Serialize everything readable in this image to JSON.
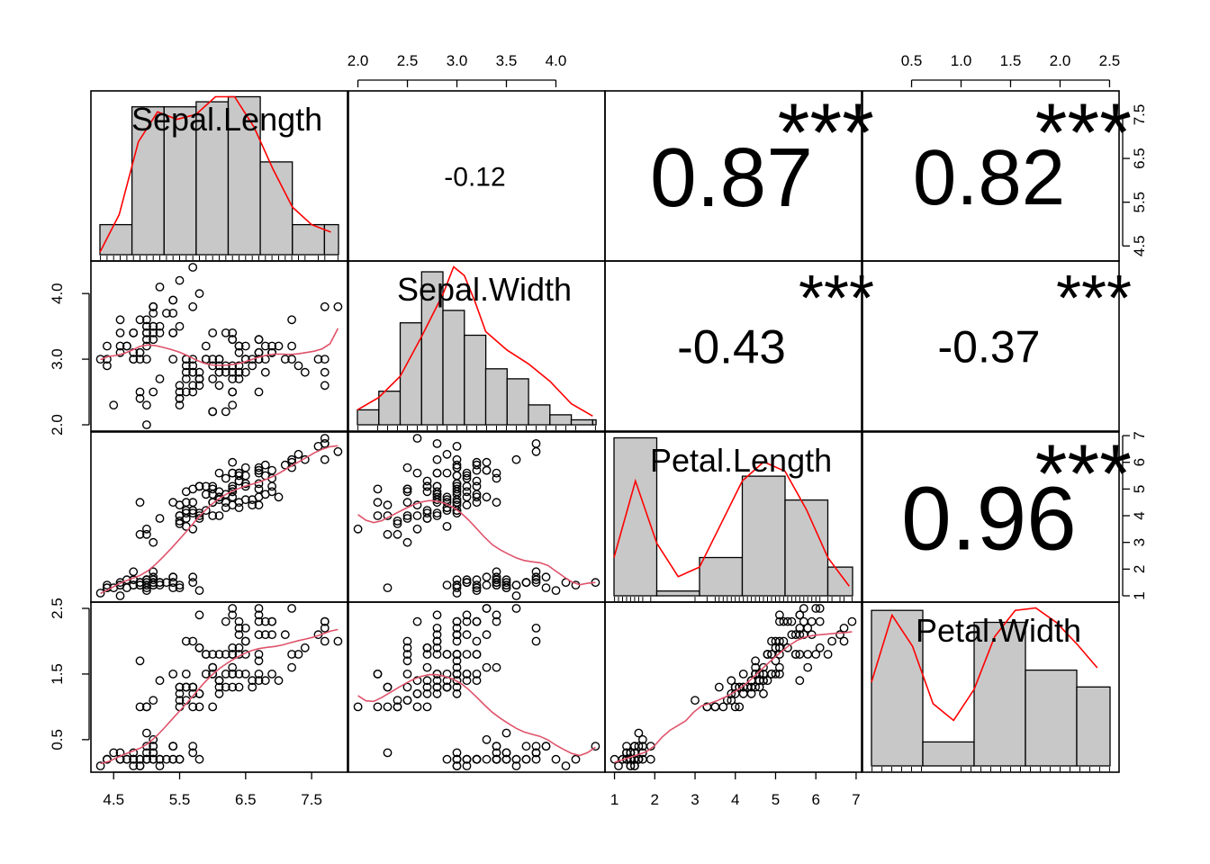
{
  "colors": {
    "smooth_line": "#ff0000",
    "scatter_line": "#df536b",
    "stars": "#df536b",
    "hist_fill": "#c8c8c8"
  },
  "chart_data": {
    "type": "scatter-matrix",
    "variables": [
      "Sepal.Length",
      "Sepal.Width",
      "Petal.Length",
      "Petal.Width"
    ],
    "ranges": [
      [
        4.3,
        7.9
      ],
      [
        2.0,
        4.4
      ],
      [
        1.0,
        6.9
      ],
      [
        0.1,
        2.5
      ]
    ],
    "axis_ticks": [
      [
        "4.5",
        "5.5",
        "6.5",
        "7.5"
      ],
      [
        "2.0",
        "2.5",
        "3.0",
        "3.5",
        "4.0"
      ],
      [
        "1",
        "2",
        "3",
        "4",
        "5",
        "6",
        "7"
      ],
      [
        "0.5",
        "1.0",
        "1.5",
        "2.0",
        "2.5"
      ]
    ],
    "left_axis_ticks": {
      "1": [
        "2.0",
        "3.0",
        "4.0"
      ],
      "3": [
        "0.5",
        "1.5",
        "2.5"
      ]
    },
    "right_axis_ticks": {
      "0": [
        "4.5",
        "5.5",
        "6.5",
        "7.5"
      ],
      "2": [
        "1",
        "2",
        "3",
        "4",
        "5",
        "6",
        "7"
      ]
    },
    "correlations": [
      {
        "pair": [
          "Sepal.Length",
          "Sepal.Width"
        ],
        "value": "-0.12",
        "stars": ""
      },
      {
        "pair": [
          "Sepal.Length",
          "Petal.Length"
        ],
        "value": "0.87",
        "stars": "***"
      },
      {
        "pair": [
          "Sepal.Length",
          "Petal.Width"
        ],
        "value": "0.82",
        "stars": "***"
      },
      {
        "pair": [
          "Sepal.Width",
          "Petal.Length"
        ],
        "value": "-0.43",
        "stars": "***"
      },
      {
        "pair": [
          "Sepal.Width",
          "Petal.Width"
        ],
        "value": "-0.37",
        "stars": "***"
      },
      {
        "pair": [
          "Petal.Length",
          "Petal.Width"
        ],
        "value": "0.96",
        "stars": "***"
      }
    ],
    "histograms": [
      {
        "breaks": [
          4.0,
          4.5,
          5.0,
          5.5,
          6.0,
          6.5,
          7.0,
          7.5,
          8.0
        ],
        "density": [
          0.12,
          0.59,
          0.59,
          0.61,
          0.63,
          0.37,
          0.12,
          0.12
        ]
      },
      {
        "breaks": [
          2.0,
          2.2,
          2.4,
          2.6,
          2.8,
          3.0,
          3.2,
          3.4,
          3.6,
          3.8,
          4.0,
          4.2,
          4.4
        ],
        "density": [
          0.12,
          0.27,
          0.82,
          1.23,
          0.92,
          0.72,
          0.45,
          0.37,
          0.16,
          0.08,
          0.04,
          0.04
        ]
      },
      {
        "breaks": [
          1,
          2,
          3,
          4,
          5,
          6,
          7
        ],
        "density": [
          0.33,
          0.01,
          0.08,
          0.25,
          0.2,
          0.06
        ]
      },
      {
        "breaks": [
          0.0,
          0.5,
          1.0,
          1.5,
          2.0,
          2.5
        ],
        "density": [
          0.65,
          0.1,
          0.6,
          0.4,
          0.33
        ]
      }
    ],
    "density_curves": [
      {
        "x": [
          4.0,
          4.3,
          4.6,
          4.9,
          5.2,
          5.5,
          5.8,
          6.1,
          6.4,
          6.7,
          7.0,
          7.3,
          7.6,
          8.0
        ],
        "y": [
          0.01,
          0.16,
          0.45,
          0.57,
          0.54,
          0.56,
          0.63,
          0.63,
          0.51,
          0.34,
          0.19,
          0.12,
          0.09,
          0.0
        ]
      },
      {
        "x": [
          2.0,
          2.2,
          2.4,
          2.6,
          2.8,
          2.9,
          3.0,
          3.1,
          3.2,
          3.4,
          3.6,
          3.8,
          4.0,
          4.2,
          4.4
        ],
        "y": [
          0.12,
          0.22,
          0.39,
          0.71,
          1.05,
          1.27,
          1.2,
          0.99,
          0.75,
          0.6,
          0.49,
          0.35,
          0.17,
          0.07,
          0.04
        ]
      },
      {
        "x": [
          1.0,
          1.5,
          2.0,
          2.5,
          3.0,
          3.5,
          4.0,
          4.5,
          5.0,
          5.5,
          6.0,
          6.5,
          7.0
        ],
        "y": [
          0.08,
          0.24,
          0.11,
          0.04,
          0.06,
          0.15,
          0.24,
          0.28,
          0.26,
          0.18,
          0.08,
          0.02,
          0.0
        ]
      },
      {
        "x": [
          0.0,
          0.2,
          0.4,
          0.6,
          0.8,
          1.0,
          1.2,
          1.4,
          1.6,
          1.8,
          2.0,
          2.2,
          2.5
        ],
        "y": [
          0.35,
          0.63,
          0.5,
          0.26,
          0.19,
          0.32,
          0.54,
          0.65,
          0.66,
          0.6,
          0.51,
          0.41,
          0.18
        ]
      }
    ],
    "data": [
      [
        5.1,
        3.5,
        1.4,
        0.2
      ],
      [
        4.9,
        3.0,
        1.4,
        0.2
      ],
      [
        4.7,
        3.2,
        1.3,
        0.2
      ],
      [
        4.6,
        3.1,
        1.5,
        0.2
      ],
      [
        5.0,
        3.6,
        1.4,
        0.2
      ],
      [
        5.4,
        3.9,
        1.7,
        0.4
      ],
      [
        4.6,
        3.4,
        1.4,
        0.3
      ],
      [
        5.0,
        3.4,
        1.5,
        0.2
      ],
      [
        4.4,
        2.9,
        1.4,
        0.2
      ],
      [
        4.9,
        3.1,
        1.5,
        0.1
      ],
      [
        5.4,
        3.7,
        1.5,
        0.2
      ],
      [
        4.8,
        3.4,
        1.6,
        0.2
      ],
      [
        4.8,
        3.0,
        1.4,
        0.1
      ],
      [
        4.3,
        3.0,
        1.1,
        0.1
      ],
      [
        5.8,
        4.0,
        1.2,
        0.2
      ],
      [
        5.7,
        4.4,
        1.5,
        0.4
      ],
      [
        5.4,
        3.9,
        1.3,
        0.4
      ],
      [
        5.1,
        3.5,
        1.4,
        0.3
      ],
      [
        5.7,
        3.8,
        1.7,
        0.3
      ],
      [
        5.1,
        3.8,
        1.5,
        0.3
      ],
      [
        5.4,
        3.4,
        1.7,
        0.2
      ],
      [
        5.1,
        3.7,
        1.5,
        0.4
      ],
      [
        4.6,
        3.6,
        1.0,
        0.2
      ],
      [
        5.1,
        3.3,
        1.7,
        0.5
      ],
      [
        4.8,
        3.4,
        1.9,
        0.2
      ],
      [
        5.0,
        3.0,
        1.6,
        0.2
      ],
      [
        5.0,
        3.4,
        1.6,
        0.4
      ],
      [
        5.2,
        3.5,
        1.5,
        0.2
      ],
      [
        5.2,
        3.4,
        1.4,
        0.2
      ],
      [
        4.7,
        3.2,
        1.6,
        0.2
      ],
      [
        4.8,
        3.1,
        1.6,
        0.2
      ],
      [
        5.4,
        3.4,
        1.5,
        0.4
      ],
      [
        5.2,
        4.1,
        1.5,
        0.1
      ],
      [
        5.5,
        4.2,
        1.4,
        0.2
      ],
      [
        4.9,
        3.1,
        1.5,
        0.2
      ],
      [
        5.0,
        3.2,
        1.2,
        0.2
      ],
      [
        5.5,
        3.5,
        1.3,
        0.2
      ],
      [
        4.9,
        3.6,
        1.4,
        0.1
      ],
      [
        4.4,
        3.0,
        1.3,
        0.2
      ],
      [
        5.1,
        3.4,
        1.5,
        0.2
      ],
      [
        5.0,
        3.5,
        1.3,
        0.3
      ],
      [
        4.5,
        2.3,
        1.3,
        0.3
      ],
      [
        4.4,
        3.2,
        1.3,
        0.2
      ],
      [
        5.0,
        3.5,
        1.6,
        0.6
      ],
      [
        5.1,
        3.8,
        1.9,
        0.4
      ],
      [
        4.8,
        3.0,
        1.4,
        0.3
      ],
      [
        5.1,
        3.8,
        1.6,
        0.2
      ],
      [
        4.6,
        3.2,
        1.4,
        0.2
      ],
      [
        5.3,
        3.7,
        1.5,
        0.2
      ],
      [
        5.0,
        3.3,
        1.4,
        0.2
      ],
      [
        7.0,
        3.2,
        4.7,
        1.4
      ],
      [
        6.4,
        3.2,
        4.5,
        1.5
      ],
      [
        6.9,
        3.1,
        4.9,
        1.5
      ],
      [
        5.5,
        2.3,
        4.0,
        1.3
      ],
      [
        6.5,
        2.8,
        4.6,
        1.5
      ],
      [
        5.7,
        2.8,
        4.5,
        1.3
      ],
      [
        6.3,
        3.3,
        4.7,
        1.6
      ],
      [
        4.9,
        2.4,
        3.3,
        1.0
      ],
      [
        6.6,
        2.9,
        4.6,
        1.3
      ],
      [
        5.2,
        2.7,
        3.9,
        1.4
      ],
      [
        5.0,
        2.0,
        3.5,
        1.0
      ],
      [
        5.9,
        3.0,
        4.2,
        1.5
      ],
      [
        6.0,
        2.2,
        4.0,
        1.0
      ],
      [
        6.1,
        2.9,
        4.7,
        1.4
      ],
      [
        5.6,
        2.9,
        3.6,
        1.3
      ],
      [
        6.7,
        3.1,
        4.4,
        1.4
      ],
      [
        5.6,
        3.0,
        4.5,
        1.5
      ],
      [
        5.8,
        2.7,
        4.1,
        1.0
      ],
      [
        6.2,
        2.2,
        4.5,
        1.5
      ],
      [
        5.6,
        2.5,
        3.9,
        1.1
      ],
      [
        5.9,
        3.2,
        4.8,
        1.8
      ],
      [
        6.1,
        2.8,
        4.0,
        1.3
      ],
      [
        6.3,
        2.5,
        4.9,
        1.5
      ],
      [
        6.1,
        2.8,
        4.7,
        1.2
      ],
      [
        6.4,
        2.9,
        4.3,
        1.3
      ],
      [
        6.6,
        3.0,
        4.4,
        1.4
      ],
      [
        6.8,
        2.8,
        4.8,
        1.4
      ],
      [
        6.7,
        3.0,
        5.0,
        1.7
      ],
      [
        6.0,
        2.9,
        4.5,
        1.5
      ],
      [
        5.7,
        2.6,
        3.5,
        1.0
      ],
      [
        5.5,
        2.4,
        3.8,
        1.1
      ],
      [
        5.5,
        2.4,
        3.7,
        1.0
      ],
      [
        5.8,
        2.7,
        3.9,
        1.2
      ],
      [
        6.0,
        2.7,
        5.1,
        1.6
      ],
      [
        5.4,
        3.0,
        4.5,
        1.5
      ],
      [
        6.0,
        3.4,
        4.5,
        1.6
      ],
      [
        6.7,
        3.1,
        4.7,
        1.5
      ],
      [
        6.3,
        2.3,
        4.4,
        1.3
      ],
      [
        5.6,
        3.0,
        4.1,
        1.3
      ],
      [
        5.5,
        2.5,
        4.0,
        1.3
      ],
      [
        5.5,
        2.6,
        4.4,
        1.2
      ],
      [
        6.1,
        3.0,
        4.6,
        1.4
      ],
      [
        5.8,
        2.6,
        4.0,
        1.2
      ],
      [
        5.0,
        2.3,
        3.3,
        1.0
      ],
      [
        5.6,
        2.7,
        4.2,
        1.3
      ],
      [
        5.7,
        3.0,
        4.2,
        1.2
      ],
      [
        5.7,
        2.9,
        4.2,
        1.3
      ],
      [
        6.2,
        2.9,
        4.3,
        1.3
      ],
      [
        5.1,
        2.5,
        3.0,
        1.1
      ],
      [
        5.7,
        2.8,
        4.1,
        1.3
      ],
      [
        6.3,
        3.3,
        6.0,
        2.5
      ],
      [
        5.8,
        2.7,
        5.1,
        1.9
      ],
      [
        7.1,
        3.0,
        5.9,
        2.1
      ],
      [
        6.3,
        2.9,
        5.6,
        1.8
      ],
      [
        6.5,
        3.0,
        5.8,
        2.2
      ],
      [
        7.6,
        3.0,
        6.6,
        2.1
      ],
      [
        4.9,
        2.5,
        4.5,
        1.7
      ],
      [
        7.3,
        2.9,
        6.3,
        1.8
      ],
      [
        6.7,
        2.5,
        5.8,
        1.8
      ],
      [
        7.2,
        3.6,
        6.1,
        2.5
      ],
      [
        6.5,
        3.2,
        5.1,
        2.0
      ],
      [
        6.4,
        2.7,
        5.3,
        1.9
      ],
      [
        6.8,
        3.0,
        5.5,
        2.1
      ],
      [
        5.7,
        2.5,
        5.0,
        2.0
      ],
      [
        5.8,
        2.8,
        5.1,
        2.4
      ],
      [
        6.4,
        3.2,
        5.3,
        2.3
      ],
      [
        6.5,
        3.0,
        5.5,
        1.8
      ],
      [
        7.7,
        3.8,
        6.7,
        2.2
      ],
      [
        7.7,
        2.6,
        6.9,
        2.3
      ],
      [
        6.0,
        2.2,
        5.0,
        1.5
      ],
      [
        6.9,
        3.2,
        5.7,
        2.3
      ],
      [
        5.6,
        2.8,
        4.9,
        2.0
      ],
      [
        7.7,
        2.8,
        6.7,
        2.0
      ],
      [
        6.3,
        2.7,
        4.9,
        1.8
      ],
      [
        6.7,
        3.3,
        5.7,
        2.1
      ],
      [
        7.2,
        3.2,
        6.0,
        1.8
      ],
      [
        6.2,
        2.8,
        4.8,
        1.8
      ],
      [
        6.1,
        3.0,
        4.9,
        1.8
      ],
      [
        6.4,
        2.8,
        5.6,
        2.1
      ],
      [
        7.2,
        3.0,
        5.8,
        1.6
      ],
      [
        7.4,
        2.8,
        6.1,
        1.9
      ],
      [
        7.9,
        3.8,
        6.4,
        2.0
      ],
      [
        6.4,
        2.8,
        5.6,
        2.2
      ],
      [
        6.3,
        2.8,
        5.1,
        1.5
      ],
      [
        6.1,
        2.6,
        5.6,
        1.4
      ],
      [
        7.7,
        3.0,
        6.1,
        2.3
      ],
      [
        6.3,
        3.4,
        5.6,
        2.4
      ],
      [
        6.4,
        3.1,
        5.5,
        1.8
      ],
      [
        6.0,
        3.0,
        4.8,
        1.8
      ],
      [
        6.9,
        3.1,
        5.4,
        2.1
      ],
      [
        6.7,
        3.1,
        5.6,
        2.4
      ],
      [
        6.9,
        3.1,
        5.1,
        2.3
      ],
      [
        5.8,
        2.7,
        5.1,
        1.9
      ],
      [
        6.8,
        3.2,
        5.9,
        2.3
      ],
      [
        6.7,
        3.3,
        5.7,
        2.5
      ],
      [
        6.7,
        3.0,
        5.2,
        2.3
      ],
      [
        6.3,
        2.5,
        5.0,
        1.9
      ],
      [
        6.5,
        3.0,
        5.2,
        2.0
      ],
      [
        6.2,
        3.4,
        5.4,
        2.3
      ],
      [
        5.9,
        3.0,
        5.1,
        1.8
      ]
    ]
  }
}
